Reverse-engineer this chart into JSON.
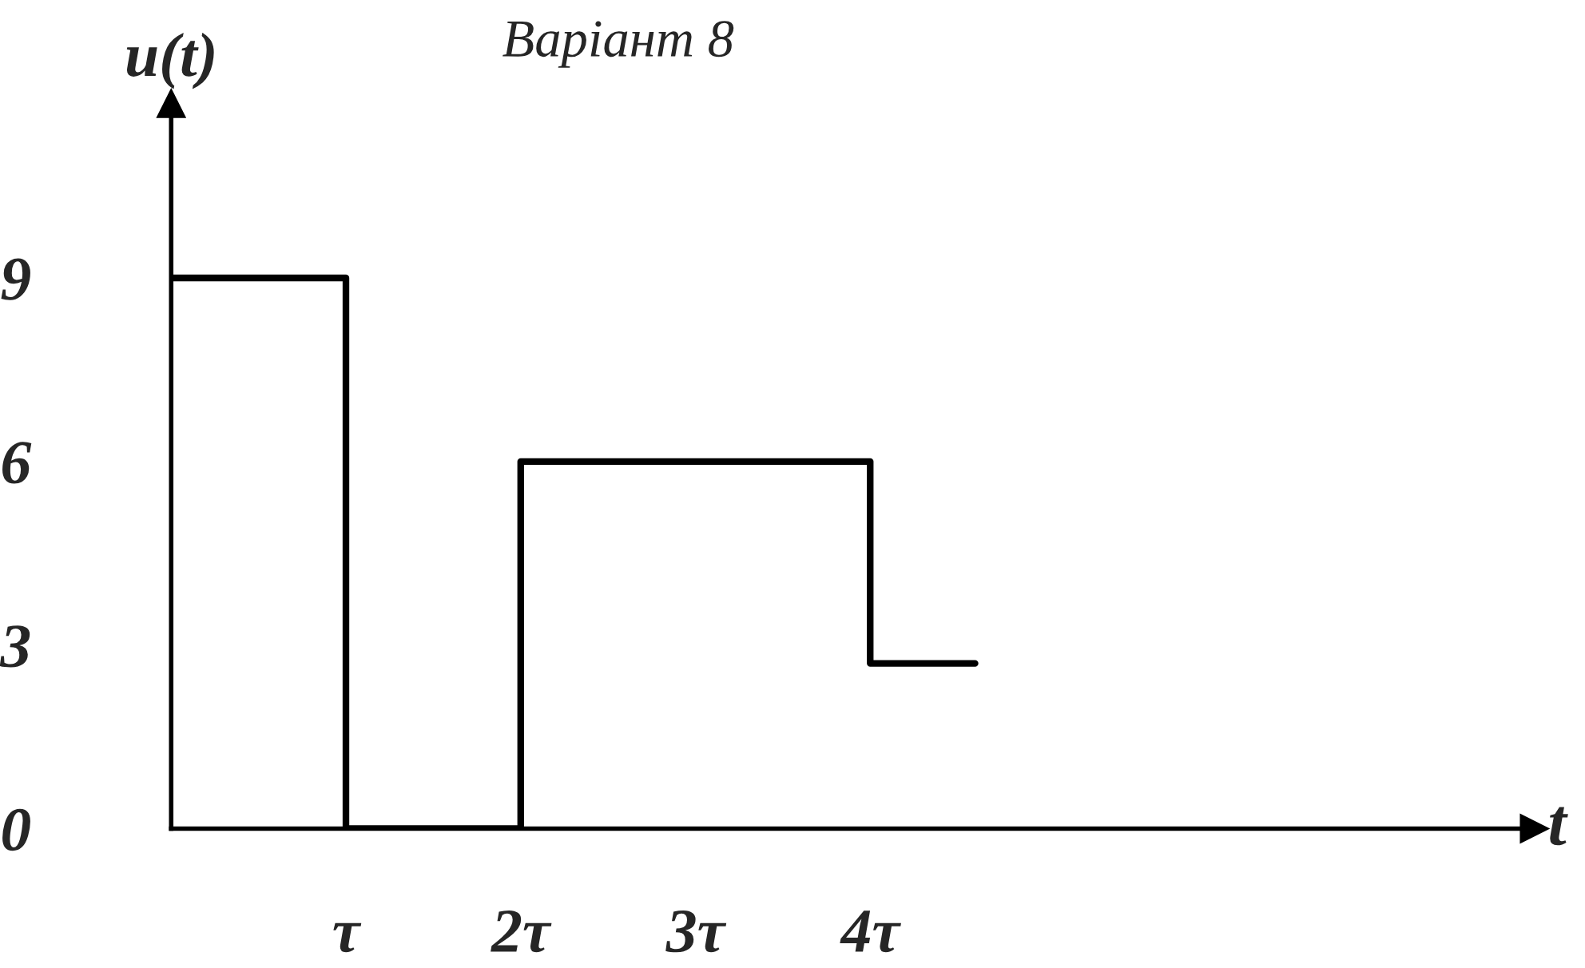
{
  "chart_data": {
    "type": "step",
    "title": "Варіант 8",
    "xlabel": "t",
    "ylabel": "u(t)",
    "x": [
      0,
      1,
      2,
      4,
      4.6
    ],
    "series": [
      {
        "color": "#000000",
        "values": [
          9,
          0,
          6,
          2.7,
          2.7
        ]
      }
    ],
    "xlim": [
      0,
      7.8
    ],
    "ylim": [
      0,
      11.85
    ],
    "xticks": [
      {
        "value": 1,
        "label": "τ"
      },
      {
        "value": 2,
        "label": "2τ"
      },
      {
        "value": 3,
        "label": "3τ"
      },
      {
        "value": 4,
        "label": "4τ"
      }
    ],
    "yticks": [
      0,
      3,
      6,
      9
    ],
    "grid": false,
    "legend": false
  }
}
